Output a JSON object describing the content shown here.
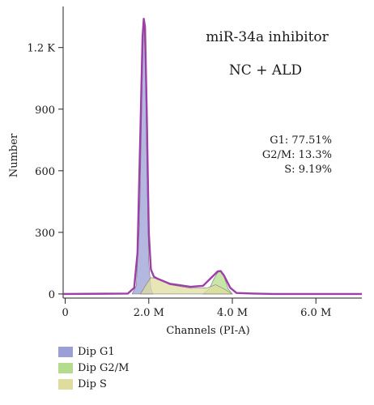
{
  "chart_data": {
    "type": "area",
    "title": "miR-34a inhibitor",
    "subtitle": "NC + ALD",
    "xlabel": "Channels (PI-A)",
    "ylabel": "Number",
    "xlim": [
      -0.05,
      7.1
    ],
    "ylim": [
      -20,
      1400
    ],
    "x_ticks": [
      {
        "value": 0,
        "label": "0"
      },
      {
        "value": 2.0,
        "label": "2.0 M"
      },
      {
        "value": 4.0,
        "label": "4.0 M"
      },
      {
        "value": 6.0,
        "label": "6.0 M"
      }
    ],
    "y_ticks": [
      {
        "value": 0,
        "label": "0"
      },
      {
        "value": 300,
        "label": "300"
      },
      {
        "value": 600,
        "label": "600"
      },
      {
        "value": 900,
        "label": "900"
      },
      {
        "value": 1200,
        "label": "1.2 K"
      }
    ],
    "stats": [
      "G1: 77.51%",
      "G2/M: 13.3%",
      "S: 9.19%"
    ],
    "series": [
      {
        "name": "Dip G1",
        "color": "#9b9fd6",
        "x": [
          1.6,
          1.7,
          1.78,
          1.84,
          1.88,
          1.92,
          1.96,
          2.0,
          2.05,
          2.1
        ],
        "values": [
          0,
          40,
          350,
          1000,
          1330,
          1100,
          550,
          150,
          30,
          0
        ]
      },
      {
        "name": "Dip G2/M",
        "color": "#b5dc8e",
        "x": [
          3.3,
          3.45,
          3.55,
          3.65,
          3.72,
          3.8,
          3.9,
          4.0
        ],
        "values": [
          0,
          25,
          70,
          105,
          110,
          85,
          25,
          0
        ]
      },
      {
        "name": "Dip S",
        "color": "#dedd9e",
        "x": [
          1.8,
          1.95,
          2.05,
          2.2,
          2.5,
          3.0,
          3.4,
          3.6,
          3.8,
          4.0
        ],
        "values": [
          0,
          50,
          80,
          75,
          45,
          28,
          30,
          45,
          25,
          0
        ]
      },
      {
        "color": "#9c3fa6",
        "x": [
          -0.05,
          1.5,
          1.65,
          1.73,
          1.8,
          1.85,
          1.88,
          1.91,
          1.95,
          2.0,
          2.05,
          2.12,
          2.2,
          2.5,
          3.0,
          3.3,
          3.5,
          3.65,
          3.72,
          3.8,
          3.95,
          4.1,
          4.5,
          5.0,
          6.0,
          7.1
        ],
        "values": [
          0,
          2,
          30,
          200,
          800,
          1250,
          1340,
          1300,
          900,
          300,
          120,
          85,
          75,
          50,
          35,
          40,
          80,
          110,
          112,
          90,
          30,
          5,
          2,
          0,
          0,
          0
        ]
      }
    ],
    "legend": [
      "Dip G1",
      "Dip G2/M",
      "Dip S"
    ],
    "legend_position": "bottom-left",
    "grid": false
  }
}
